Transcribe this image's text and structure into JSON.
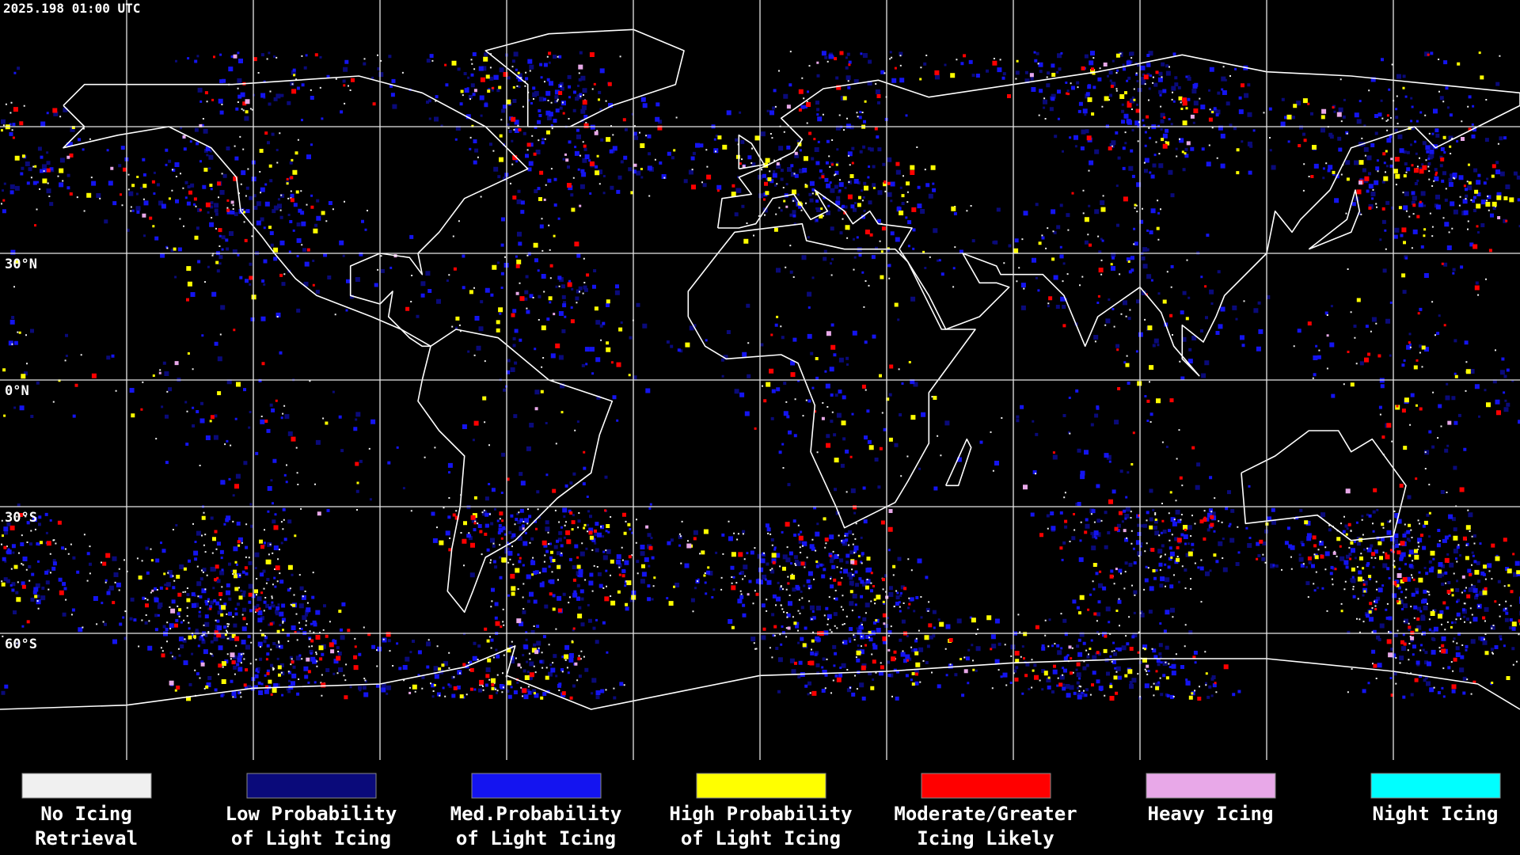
{
  "timestamp": "2025.198 01:00 UTC",
  "latitude_labels": [
    {
      "value": 30,
      "label": "30°N"
    },
    {
      "value": 0,
      "label": "0°N"
    },
    {
      "value": -30,
      "label": "30°S"
    },
    {
      "value": -60,
      "label": "60°S"
    }
  ],
  "legend": [
    {
      "lines": [
        "No Icing",
        "Retrieval"
      ],
      "color": "#f0f0f0"
    },
    {
      "lines": [
        "Low Probability",
        "of Light Icing"
      ],
      "color": "#0a0a7a"
    },
    {
      "lines": [
        "Med.Probability",
        "of Light Icing"
      ],
      "color": "#1414f0"
    },
    {
      "lines": [
        "High Probability",
        "of Light Icing"
      ],
      "color": "#ffff00"
    },
    {
      "lines": [
        "Moderate/Greater",
        "Icing Likely"
      ],
      "color": "#ff0000"
    },
    {
      "lines": [
        "Heavy Icing"
      ],
      "color": "#e8a8e8"
    },
    {
      "lines": [
        "Night Icing"
      ],
      "color": "#00ffff"
    }
  ]
}
